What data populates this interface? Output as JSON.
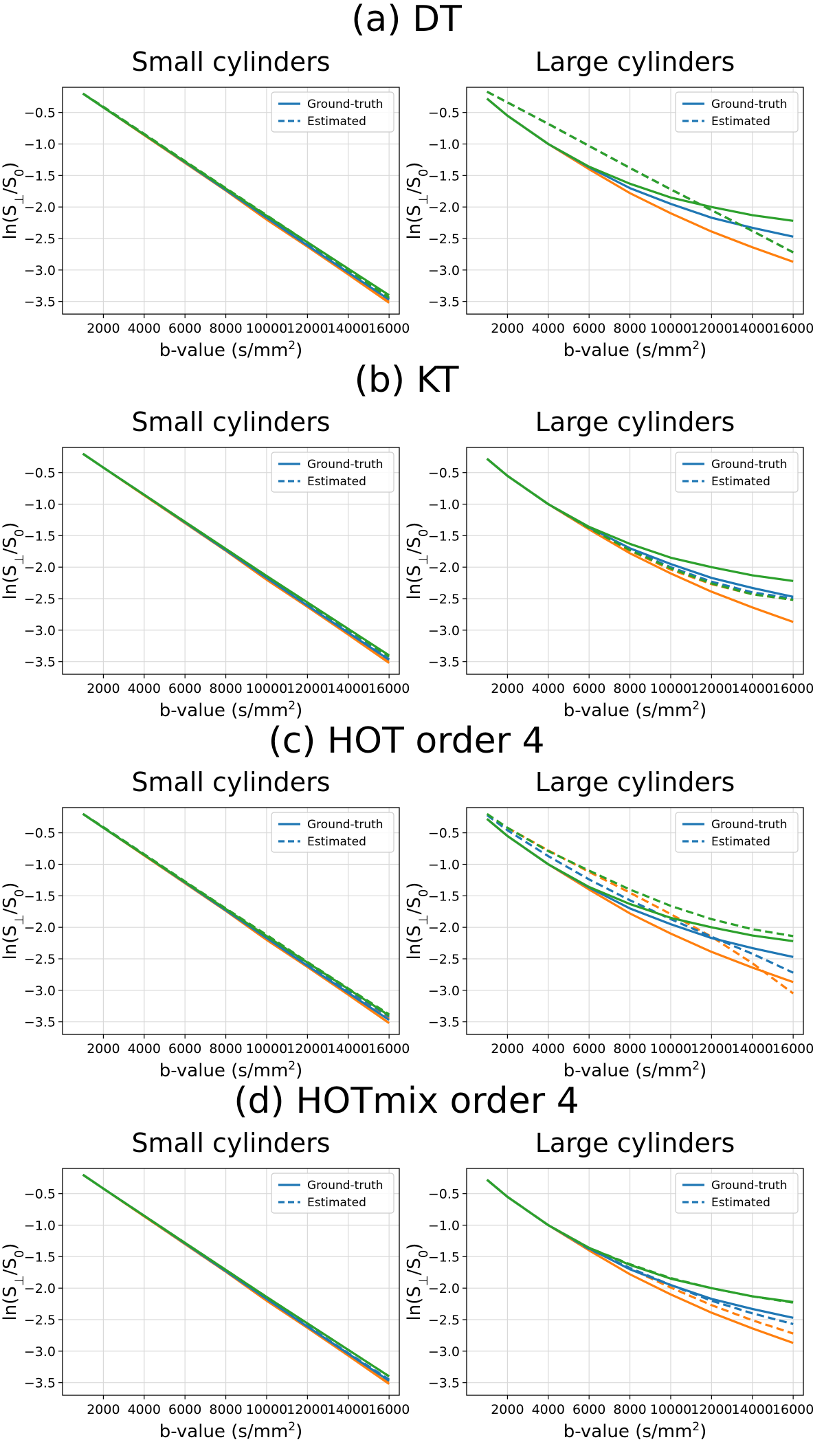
{
  "figure": {
    "sections": [
      {
        "title": "(a) DT",
        "panels": [
          {
            "title": "Small cylinders",
            "key": "a_small"
          },
          {
            "title": "Large cylinders",
            "key": "a_large"
          }
        ]
      },
      {
        "title": "(b) KT",
        "panels": [
          {
            "title": "Small cylinders",
            "key": "b_small"
          },
          {
            "title": "Large cylinders",
            "key": "b_large"
          }
        ]
      },
      {
        "title": "(c) HOT order 4",
        "panels": [
          {
            "title": "Small cylinders",
            "key": "c_small"
          },
          {
            "title": "Large cylinders",
            "key": "c_large"
          }
        ]
      },
      {
        "title": "(d) HOTmix order 4",
        "panels": [
          {
            "title": "Small cylinders",
            "key": "d_small"
          },
          {
            "title": "Large cylinders",
            "key": "d_large"
          }
        ]
      }
    ],
    "legend": {
      "ground_truth": "Ground-truth",
      "estimated": "Estimated"
    },
    "colors": {
      "blue": "#1f77b4",
      "orange": "#ff7f0e",
      "green": "#2ca02c",
      "grid": "#d9d9d9"
    }
  },
  "chart_data": {
    "type": "line",
    "xlabel": "b-value (s/mm²)",
    "ylabel": "ln(S⊥/S₀)",
    "xlim": [
      0,
      16500
    ],
    "ylim": [
      -3.7,
      -0.1
    ],
    "xticks": [
      2000,
      4000,
      6000,
      8000,
      10000,
      12000,
      14000,
      16000
    ],
    "yticks": [
      -0.5,
      -1.0,
      -1.5,
      -2.0,
      -2.5,
      -3.0,
      -3.5
    ],
    "x": [
      1000,
      2000,
      4000,
      6000,
      8000,
      10000,
      12000,
      14000,
      16000
    ],
    "legend_position": "top-right",
    "panels": {
      "a_small": [
        {
          "name": "Ground-truth",
          "color": "orange",
          "style": "solid",
          "values": [
            -0.2,
            -0.42,
            -0.86,
            -1.3,
            -1.74,
            -2.2,
            -2.63,
            -3.07,
            -3.52
          ]
        },
        {
          "name": "Estimated",
          "color": "orange",
          "style": "dashed",
          "values": [
            -0.2,
            -0.41,
            -0.84,
            -1.28,
            -1.72,
            -2.17,
            -2.61,
            -3.05,
            -3.5
          ]
        },
        {
          "name": "Ground-truth",
          "color": "blue",
          "style": "solid",
          "values": [
            -0.2,
            -0.42,
            -0.85,
            -1.29,
            -1.73,
            -2.17,
            -2.61,
            -3.04,
            -3.47
          ]
        },
        {
          "name": "Estimated",
          "color": "blue",
          "style": "dashed",
          "values": [
            -0.2,
            -0.41,
            -0.84,
            -1.28,
            -1.72,
            -2.16,
            -2.6,
            -3.03,
            -3.46
          ]
        },
        {
          "name": "Ground-truth",
          "color": "green",
          "style": "solid",
          "values": [
            -0.2,
            -0.42,
            -0.85,
            -1.28,
            -1.71,
            -2.14,
            -2.56,
            -2.98,
            -3.4
          ]
        },
        {
          "name": "Estimated",
          "color": "green",
          "style": "dashed",
          "values": [
            -0.2,
            -0.41,
            -0.84,
            -1.27,
            -1.7,
            -2.13,
            -2.56,
            -3.0,
            -3.44
          ]
        }
      ],
      "a_large": [
        {
          "name": "Ground-truth",
          "color": "orange",
          "style": "solid",
          "values": [
            -0.28,
            -0.55,
            -1.0,
            -1.4,
            -1.78,
            -2.1,
            -2.39,
            -2.64,
            -2.87
          ]
        },
        {
          "name": "Estimated",
          "color": "orange",
          "style": "dashed",
          "values": [
            -0.17,
            -0.34,
            -0.68,
            -1.03,
            -1.38,
            -1.72,
            -2.05,
            -2.38,
            -2.72
          ]
        },
        {
          "name": "Ground-truth",
          "color": "blue",
          "style": "solid",
          "values": [
            -0.28,
            -0.55,
            -1.0,
            -1.37,
            -1.7,
            -1.95,
            -2.17,
            -2.33,
            -2.47
          ]
        },
        {
          "name": "Estimated",
          "color": "blue",
          "style": "dashed",
          "values": [
            -0.17,
            -0.34,
            -0.68,
            -1.03,
            -1.38,
            -1.72,
            -2.05,
            -2.38,
            -2.72
          ]
        },
        {
          "name": "Ground-truth",
          "color": "green",
          "style": "solid",
          "values": [
            -0.28,
            -0.55,
            -1.0,
            -1.36,
            -1.63,
            -1.85,
            -2.0,
            -2.13,
            -2.22
          ]
        },
        {
          "name": "Estimated",
          "color": "green",
          "style": "dashed",
          "values": [
            -0.17,
            -0.34,
            -0.68,
            -1.03,
            -1.38,
            -1.72,
            -2.05,
            -2.38,
            -2.72
          ]
        }
      ],
      "b_small": [
        {
          "name": "Ground-truth",
          "color": "orange",
          "style": "solid",
          "values": [
            -0.2,
            -0.42,
            -0.86,
            -1.3,
            -1.74,
            -2.2,
            -2.63,
            -3.07,
            -3.52
          ]
        },
        {
          "name": "Estimated",
          "color": "orange",
          "style": "dashed",
          "values": [
            -0.2,
            -0.42,
            -0.86,
            -1.3,
            -1.74,
            -2.19,
            -2.63,
            -3.06,
            -3.5
          ]
        },
        {
          "name": "Ground-truth",
          "color": "blue",
          "style": "solid",
          "values": [
            -0.2,
            -0.42,
            -0.85,
            -1.29,
            -1.73,
            -2.17,
            -2.61,
            -3.04,
            -3.47
          ]
        },
        {
          "name": "Estimated",
          "color": "blue",
          "style": "dashed",
          "values": [
            -0.2,
            -0.42,
            -0.85,
            -1.29,
            -1.73,
            -2.17,
            -2.6,
            -3.03,
            -3.46
          ]
        },
        {
          "name": "Ground-truth",
          "color": "green",
          "style": "solid",
          "values": [
            -0.2,
            -0.42,
            -0.85,
            -1.28,
            -1.71,
            -2.14,
            -2.56,
            -2.98,
            -3.4
          ]
        },
        {
          "name": "Estimated",
          "color": "green",
          "style": "dashed",
          "values": [
            -0.2,
            -0.42,
            -0.85,
            -1.28,
            -1.71,
            -2.14,
            -2.57,
            -2.99,
            -3.42
          ]
        }
      ],
      "b_large": [
        {
          "name": "Ground-truth",
          "color": "orange",
          "style": "solid",
          "values": [
            -0.28,
            -0.55,
            -1.0,
            -1.4,
            -1.78,
            -2.1,
            -2.39,
            -2.64,
            -2.87
          ]
        },
        {
          "name": "Estimated",
          "color": "orange",
          "style": "dashed",
          "values": [
            -0.28,
            -0.55,
            -1.0,
            -1.39,
            -1.74,
            -2.04,
            -2.27,
            -2.43,
            -2.52
          ]
        },
        {
          "name": "Ground-truth",
          "color": "blue",
          "style": "solid",
          "values": [
            -0.28,
            -0.55,
            -1.0,
            -1.37,
            -1.7,
            -1.95,
            -2.17,
            -2.33,
            -2.47
          ]
        },
        {
          "name": "Estimated",
          "color": "blue",
          "style": "dashed",
          "values": [
            -0.28,
            -0.55,
            -1.0,
            -1.38,
            -1.72,
            -2.0,
            -2.23,
            -2.4,
            -2.5
          ]
        },
        {
          "name": "Ground-truth",
          "color": "green",
          "style": "solid",
          "values": [
            -0.28,
            -0.55,
            -1.0,
            -1.36,
            -1.63,
            -1.85,
            -2.0,
            -2.13,
            -2.22
          ]
        },
        {
          "name": "Estimated",
          "color": "green",
          "style": "dashed",
          "values": [
            -0.28,
            -0.55,
            -1.0,
            -1.38,
            -1.73,
            -2.02,
            -2.26,
            -2.43,
            -2.52
          ]
        }
      ],
      "c_small": [
        {
          "name": "Ground-truth",
          "color": "orange",
          "style": "solid",
          "values": [
            -0.2,
            -0.42,
            -0.86,
            -1.3,
            -1.74,
            -2.2,
            -2.63,
            -3.07,
            -3.52
          ]
        },
        {
          "name": "Estimated",
          "color": "orange",
          "style": "dashed",
          "values": [
            -0.2,
            -0.41,
            -0.85,
            -1.29,
            -1.72,
            -2.17,
            -2.6,
            -3.03,
            -3.45
          ]
        },
        {
          "name": "Ground-truth",
          "color": "blue",
          "style": "solid",
          "values": [
            -0.2,
            -0.42,
            -0.85,
            -1.29,
            -1.73,
            -2.17,
            -2.61,
            -3.04,
            -3.47
          ]
        },
        {
          "name": "Estimated",
          "color": "blue",
          "style": "dashed",
          "values": [
            -0.2,
            -0.41,
            -0.84,
            -1.28,
            -1.71,
            -2.14,
            -2.57,
            -3.0,
            -3.42
          ]
        },
        {
          "name": "Ground-truth",
          "color": "green",
          "style": "solid",
          "values": [
            -0.2,
            -0.42,
            -0.85,
            -1.28,
            -1.71,
            -2.14,
            -2.56,
            -2.98,
            -3.4
          ]
        },
        {
          "name": "Estimated",
          "color": "green",
          "style": "dashed",
          "values": [
            -0.2,
            -0.41,
            -0.84,
            -1.27,
            -1.7,
            -2.12,
            -2.55,
            -2.97,
            -3.38
          ]
        }
      ],
      "c_large": [
        {
          "name": "Ground-truth",
          "color": "orange",
          "style": "solid",
          "values": [
            -0.28,
            -0.55,
            -1.0,
            -1.4,
            -1.78,
            -2.1,
            -2.39,
            -2.64,
            -2.87
          ]
        },
        {
          "name": "Estimated",
          "color": "orange",
          "style": "dashed",
          "values": [
            null,
            -0.42,
            -0.78,
            -1.12,
            -1.45,
            -1.79,
            -2.15,
            -2.57,
            -3.05
          ]
        },
        {
          "name": "Ground-truth",
          "color": "blue",
          "style": "solid",
          "values": [
            -0.28,
            -0.55,
            -1.0,
            -1.37,
            -1.7,
            -1.95,
            -2.17,
            -2.33,
            -2.47
          ]
        },
        {
          "name": "Estimated",
          "color": "blue",
          "style": "dashed",
          "values": [
            -0.22,
            -0.46,
            -0.87,
            -1.24,
            -1.57,
            -1.87,
            -2.15,
            -2.42,
            -2.72
          ]
        },
        {
          "name": "Ground-truth",
          "color": "green",
          "style": "solid",
          "values": [
            -0.28,
            -0.55,
            -1.0,
            -1.36,
            -1.63,
            -1.85,
            -2.0,
            -2.13,
            -2.22
          ]
        },
        {
          "name": "Estimated",
          "color": "green",
          "style": "dashed",
          "values": [
            -0.2,
            -0.42,
            -0.79,
            -1.1,
            -1.4,
            -1.66,
            -1.87,
            -2.03,
            -2.14
          ]
        }
      ],
      "d_small": [
        {
          "name": "Ground-truth",
          "color": "orange",
          "style": "solid",
          "values": [
            -0.2,
            -0.42,
            -0.86,
            -1.3,
            -1.74,
            -2.2,
            -2.63,
            -3.07,
            -3.52
          ]
        },
        {
          "name": "Estimated",
          "color": "orange",
          "style": "dashed",
          "values": [
            -0.2,
            -0.42,
            -0.86,
            -1.3,
            -1.74,
            -2.19,
            -2.62,
            -3.06,
            -3.5
          ]
        },
        {
          "name": "Ground-truth",
          "color": "blue",
          "style": "solid",
          "values": [
            -0.2,
            -0.42,
            -0.85,
            -1.29,
            -1.73,
            -2.17,
            -2.61,
            -3.04,
            -3.47
          ]
        },
        {
          "name": "Estimated",
          "color": "blue",
          "style": "dashed",
          "values": [
            -0.2,
            -0.42,
            -0.85,
            -1.29,
            -1.73,
            -2.17,
            -2.6,
            -3.03,
            -3.45
          ]
        },
        {
          "name": "Ground-truth",
          "color": "green",
          "style": "solid",
          "values": [
            -0.2,
            -0.42,
            -0.85,
            -1.28,
            -1.71,
            -2.14,
            -2.56,
            -2.98,
            -3.4
          ]
        },
        {
          "name": "Estimated",
          "color": "green",
          "style": "dashed",
          "values": [
            -0.2,
            -0.42,
            -0.85,
            -1.28,
            -1.71,
            -2.14,
            -2.56,
            -2.98,
            -3.4
          ]
        }
      ],
      "d_large": [
        {
          "name": "Ground-truth",
          "color": "orange",
          "style": "solid",
          "values": [
            -0.28,
            -0.55,
            -1.0,
            -1.4,
            -1.78,
            -2.1,
            -2.39,
            -2.64,
            -2.87
          ]
        },
        {
          "name": "Estimated",
          "color": "orange",
          "style": "dashed",
          "values": [
            -0.28,
            -0.55,
            -1.0,
            -1.37,
            -1.69,
            -1.99,
            -2.27,
            -2.51,
            -2.72
          ]
        },
        {
          "name": "Ground-truth",
          "color": "blue",
          "style": "solid",
          "values": [
            -0.28,
            -0.55,
            -1.0,
            -1.37,
            -1.7,
            -1.95,
            -2.17,
            -2.33,
            -2.47
          ]
        },
        {
          "name": "Estimated",
          "color": "blue",
          "style": "dashed",
          "values": [
            -0.28,
            -0.55,
            -1.0,
            -1.38,
            -1.68,
            -1.95,
            -2.2,
            -2.4,
            -2.57
          ]
        },
        {
          "name": "Ground-truth",
          "color": "green",
          "style": "solid",
          "values": [
            -0.28,
            -0.55,
            -1.0,
            -1.36,
            -1.63,
            -1.85,
            -2.0,
            -2.13,
            -2.22
          ]
        },
        {
          "name": "Estimated",
          "color": "green",
          "style": "dashed",
          "values": [
            -0.28,
            -0.55,
            -1.0,
            -1.36,
            -1.62,
            -1.84,
            -2.0,
            -2.13,
            -2.23
          ]
        }
      ]
    }
  }
}
